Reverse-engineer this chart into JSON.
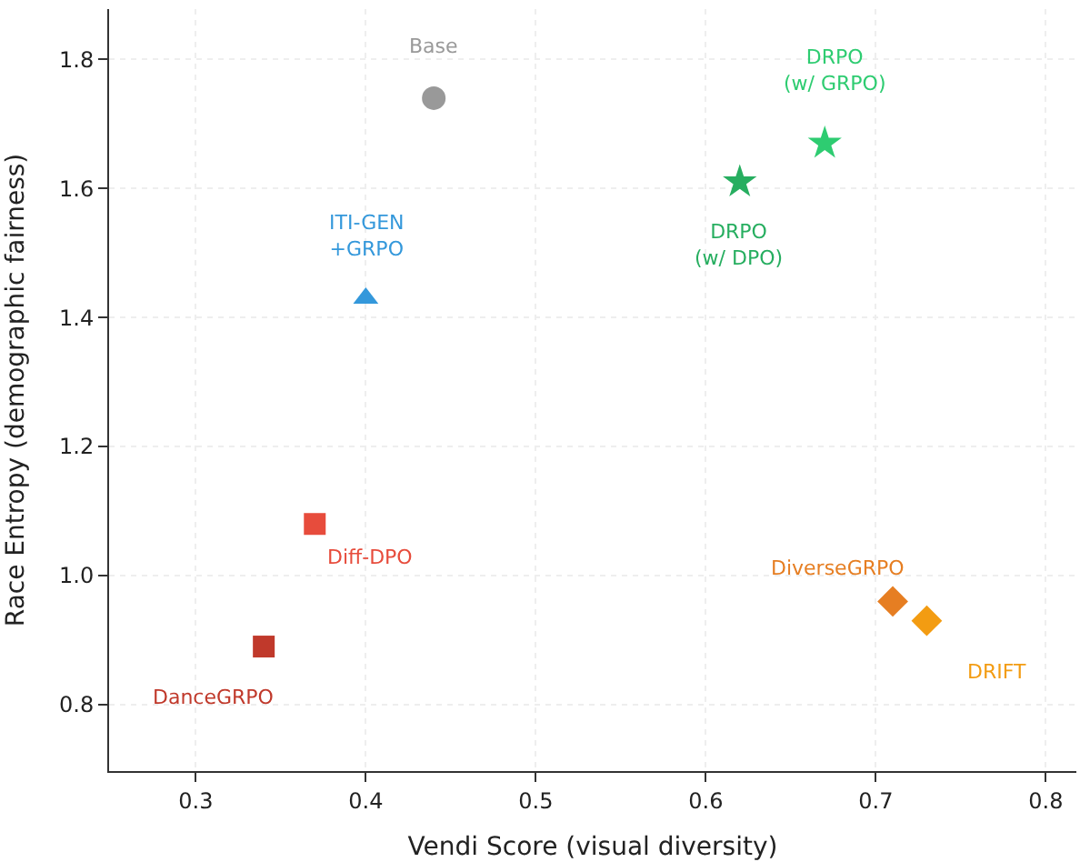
{
  "chart_data": {
    "type": "scatter",
    "xlabel": "Vendi Score (visual diversity)",
    "ylabel": "Race Entropy (demographic fairness)",
    "xlim": [
      0.249,
      0.818
    ],
    "ylim": [
      0.697,
      1.878
    ],
    "xticks": [
      0.3,
      0.4,
      0.5,
      0.6,
      0.7,
      0.8
    ],
    "yticks": [
      0.8,
      {
        "value": 1,
        "label": "1.0"
      },
      1.2,
      1.4,
      1.6,
      1.8
    ],
    "grid": true,
    "legend": false,
    "series": [
      {
        "name": "Base",
        "color": "#999999",
        "marker": "circle",
        "x": [
          0.44
        ],
        "values": [
          1.74
        ]
      },
      {
        "name": "DRPO\n(w/ GRPO)",
        "color": "#2ecc71",
        "marker": "star",
        "x": [
          0.67
        ],
        "values": [
          1.67
        ]
      },
      {
        "name": "DRPO\n(w/ DPO)",
        "color": "#27ae60",
        "marker": "star",
        "x": [
          0.62
        ],
        "values": [
          1.61
        ]
      },
      {
        "name": "ITI-GEN\n+GRPO",
        "color": "#3498db",
        "marker": "triangle",
        "x": [
          0.4
        ],
        "values": [
          1.43
        ]
      },
      {
        "name": "Diff-DPO",
        "color": "#e74c3c",
        "marker": "square",
        "x": [
          0.37
        ],
        "values": [
          1.08
        ]
      },
      {
        "name": "DanceGRPO",
        "color": "#c0392b",
        "marker": "square",
        "x": [
          0.34
        ],
        "values": [
          0.89
        ]
      },
      {
        "name": "DiverseGRPO",
        "color": "#e67e22",
        "marker": "diamond",
        "x": [
          0.71
        ],
        "values": [
          0.96
        ]
      },
      {
        "name": "DRIFT",
        "color": "#f39c12",
        "marker": "diamond",
        "x": [
          0.73
        ],
        "values": [
          0.93
        ]
      }
    ]
  }
}
